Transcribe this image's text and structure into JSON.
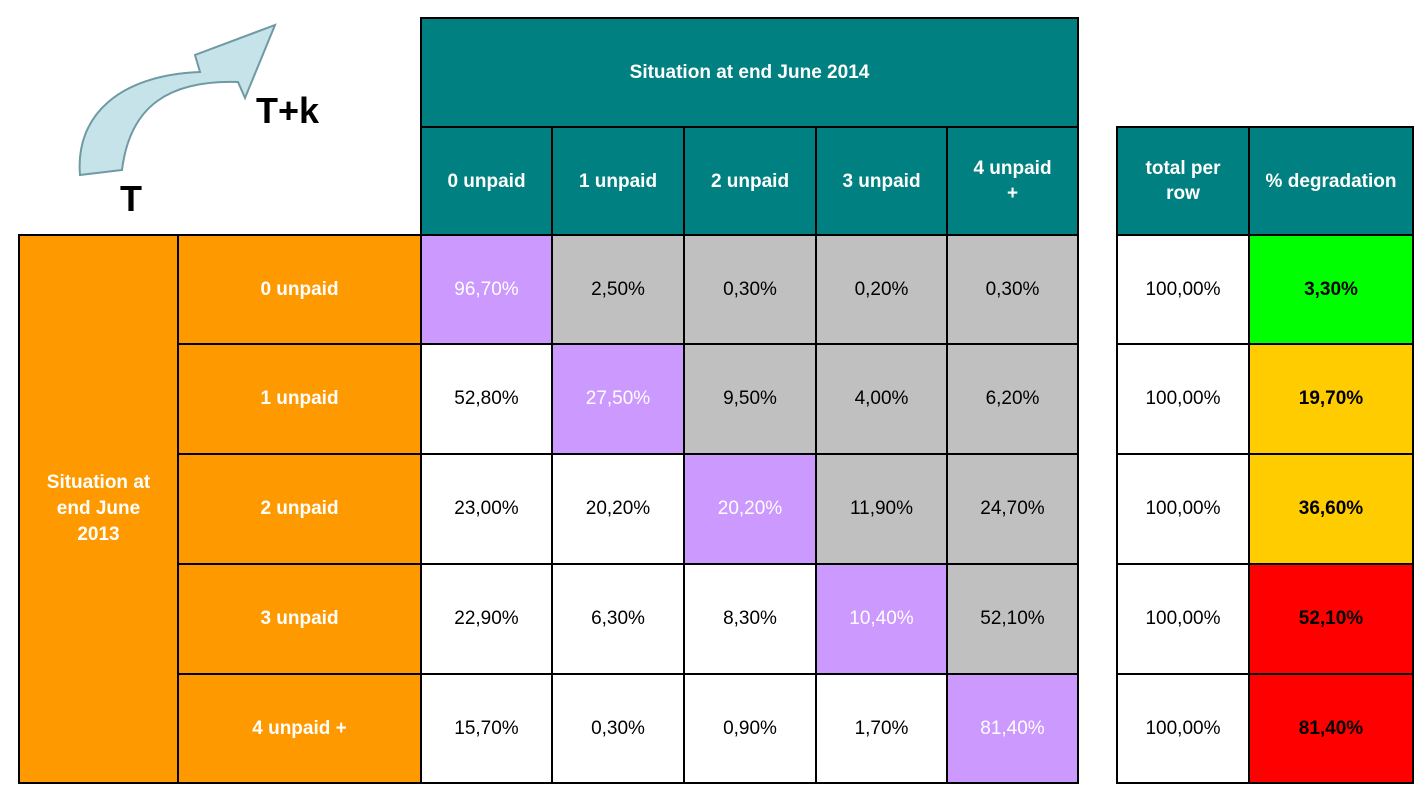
{
  "corner": {
    "from_label": "T",
    "to_label": "T+k"
  },
  "chart_data": {
    "type": "table",
    "title": "Situation at end June 2014",
    "row_group_label": "Situation at end June 2013",
    "columns": [
      "0 unpaid",
      "1 unpaid",
      "2 unpaid",
      "3 unpaid",
      "4 unpaid +"
    ],
    "rows": [
      "0 unpaid",
      "1 unpaid",
      "2 unpaid",
      "3 unpaid",
      "4 unpaid +"
    ],
    "values": [
      [
        "96,70%",
        "2,50%",
        "0,30%",
        "0,20%",
        "0,30%"
      ],
      [
        "52,80%",
        "27,50%",
        "9,50%",
        "4,00%",
        "6,20%"
      ],
      [
        "23,00%",
        "20,20%",
        "20,20%",
        "11,90%",
        "24,70%"
      ],
      [
        "22,90%",
        "6,30%",
        "8,30%",
        "10,40%",
        "52,10%"
      ],
      [
        "15,70%",
        "0,30%",
        "0,90%",
        "1,70%",
        "81,40%"
      ]
    ],
    "summary_headers": [
      "total per row",
      "% degradation"
    ],
    "totals": [
      "100,00%",
      "100,00%",
      "100,00%",
      "100,00%",
      "100,00%"
    ],
    "degradation": [
      "3,30%",
      "19,70%",
      "36,60%",
      "52,10%",
      "81,40%"
    ],
    "degradation_colors": [
      "#00ff00",
      "#ffcc00",
      "#ffcc00",
      "#ff0000",
      "#ff0000"
    ],
    "cell_colors": {
      "diagonal": "#cc99ff",
      "above_diagonal": "#c0c0c0",
      "below_diagonal": "#ffffff",
      "header": "#008080",
      "row_header": "#ff9900"
    }
  }
}
